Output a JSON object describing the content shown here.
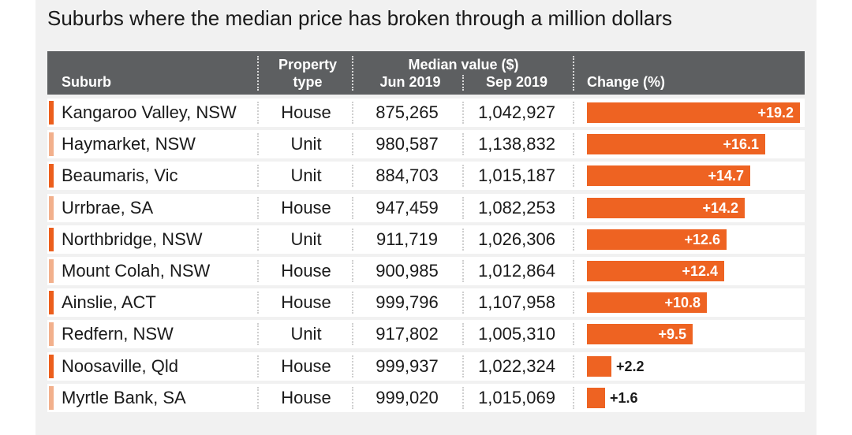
{
  "title": "Suburbs where the median price has broken through a million dollars",
  "colors": {
    "bar": "#ee6322",
    "accent_dark": "#ec5e1c",
    "accent_light": "#f2b08c",
    "header": "#5d5f61"
  },
  "header": {
    "suburb": "Suburb",
    "property_type": "Property type",
    "median_value": "Median value ($)",
    "jun": "Jun 2019",
    "sep": "Sep 2019",
    "change": "Change (%)"
  },
  "chart_data": {
    "type": "table",
    "title": "Suburbs where the median price has broken through a million dollars",
    "columns": [
      "Suburb",
      "Property type",
      "Jun 2019",
      "Sep 2019",
      "Change (%)"
    ],
    "max_change": 19.2,
    "rows": [
      {
        "suburb": "Kangaroo Valley, NSW",
        "type": "House",
        "jun": "875,265",
        "sep": "1,042,927",
        "change": 19.2,
        "change_label": "+19.2"
      },
      {
        "suburb": "Haymarket, NSW",
        "type": "Unit",
        "jun": "980,587",
        "sep": "1,138,832",
        "change": 16.1,
        "change_label": "+16.1"
      },
      {
        "suburb": "Beaumaris, Vic",
        "type": "Unit",
        "jun": "884,703",
        "sep": "1,015,187",
        "change": 14.7,
        "change_label": "+14.7"
      },
      {
        "suburb": "Urrbrae, SA",
        "type": "House",
        "jun": "947,459",
        "sep": "1,082,253",
        "change": 14.2,
        "change_label": "+14.2"
      },
      {
        "suburb": "Northbridge, NSW",
        "type": "Unit",
        "jun": "911,719",
        "sep": "1,026,306",
        "change": 12.6,
        "change_label": "+12.6"
      },
      {
        "suburb": "Mount Colah, NSW",
        "type": "House",
        "jun": "900,985",
        "sep": "1,012,864",
        "change": 12.4,
        "change_label": "+12.4"
      },
      {
        "suburb": "Ainslie, ACT",
        "type": "House",
        "jun": "999,796",
        "sep": "1,107,958",
        "change": 10.8,
        "change_label": "+10.8"
      },
      {
        "suburb": "Redfern, NSW",
        "type": "Unit",
        "jun": "917,802",
        "sep": "1,005,310",
        "change": 9.5,
        "change_label": "+9.5"
      },
      {
        "suburb": "Noosaville, Qld",
        "type": "House",
        "jun": "999,937",
        "sep": "1,022,324",
        "change": 2.2,
        "change_label": "+2.2"
      },
      {
        "suburb": "Myrtle Bank, SA",
        "type": "House",
        "jun": "999,020",
        "sep": "1,015,069",
        "change": 1.6,
        "change_label": "+1.6"
      }
    ]
  }
}
